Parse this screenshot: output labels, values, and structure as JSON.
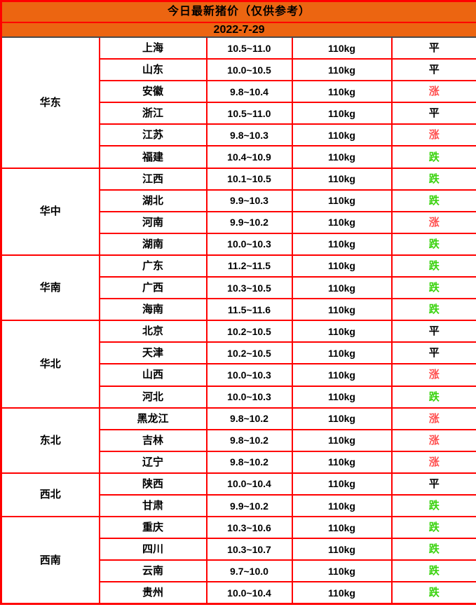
{
  "colors": {
    "header_bg": "#ec6511",
    "grid": "#ff0000",
    "date_underline": "#4a4a4a",
    "trend": {
      "涨": "#ff5050",
      "跌": "#3bd30f",
      "平": "#000000"
    }
  },
  "chart_data": {
    "type": "table",
    "title": "今日最新猪价（仅供参考）",
    "date": "2022-7-29",
    "groups": [
      {
        "region": "华东",
        "rows": [
          {
            "province": "上海",
            "price": "10.5~11.0",
            "weight": "110kg",
            "trend": "平"
          },
          {
            "province": "山东",
            "price": "10.0~10.5",
            "weight": "110kg",
            "trend": "平"
          },
          {
            "province": "安徽",
            "price": "9.8~10.4",
            "weight": "110kg",
            "trend": "涨"
          },
          {
            "province": "浙江",
            "price": "10.5~11.0",
            "weight": "110kg",
            "trend": "平"
          },
          {
            "province": "江苏",
            "price": "9.8~10.3",
            "weight": "110kg",
            "trend": "涨"
          },
          {
            "province": "福建",
            "price": "10.4~10.9",
            "weight": "110kg",
            "trend": "跌"
          }
        ]
      },
      {
        "region": "华中",
        "rows": [
          {
            "province": "江西",
            "price": "10.1~10.5",
            "weight": "110kg",
            "trend": "跌"
          },
          {
            "province": "湖北",
            "price": "9.9~10.3",
            "weight": "110kg",
            "trend": "跌"
          },
          {
            "province": "河南",
            "price": "9.9~10.2",
            "weight": "110kg",
            "trend": "涨"
          },
          {
            "province": "湖南",
            "price": "10.0~10.3",
            "weight": "110kg",
            "trend": "跌"
          }
        ]
      },
      {
        "region": "华南",
        "rows": [
          {
            "province": "广东",
            "price": "11.2~11.5",
            "weight": "110kg",
            "trend": "跌"
          },
          {
            "province": "广西",
            "price": "10.3~10.5",
            "weight": "110kg",
            "trend": "跌"
          },
          {
            "province": "海南",
            "price": "11.5~11.6",
            "weight": "110kg",
            "trend": "跌"
          }
        ]
      },
      {
        "region": "华北",
        "rows": [
          {
            "province": "北京",
            "price": "10.2~10.5",
            "weight": "110kg",
            "trend": "平"
          },
          {
            "province": "天津",
            "price": "10.2~10.5",
            "weight": "110kg",
            "trend": "平"
          },
          {
            "province": "山西",
            "price": "10.0~10.3",
            "weight": "110kg",
            "trend": "涨"
          },
          {
            "province": "河北",
            "price": "10.0~10.3",
            "weight": "110kg",
            "trend": "跌"
          }
        ]
      },
      {
        "region": "东北",
        "rows": [
          {
            "province": "黑龙江",
            "price": "9.8~10.2",
            "weight": "110kg",
            "trend": "涨"
          },
          {
            "province": "吉林",
            "price": "9.8~10.2",
            "weight": "110kg",
            "trend": "涨"
          },
          {
            "province": "辽宁",
            "price": "9.8~10.2",
            "weight": "110kg",
            "trend": "涨"
          }
        ]
      },
      {
        "region": "西北",
        "rows": [
          {
            "province": "陕西",
            "price": "10.0~10.4",
            "weight": "110kg",
            "trend": "平"
          },
          {
            "province": "甘肃",
            "price": "9.9~10.2",
            "weight": "110kg",
            "trend": "跌"
          }
        ]
      },
      {
        "region": "西南",
        "rows": [
          {
            "province": "重庆",
            "price": "10.3~10.6",
            "weight": "110kg",
            "trend": "跌"
          },
          {
            "province": "四川",
            "price": "10.3~10.7",
            "weight": "110kg",
            "trend": "跌"
          },
          {
            "province": "云南",
            "price": "9.7~10.0",
            "weight": "110kg",
            "trend": "跌"
          },
          {
            "province": "贵州",
            "price": "10.0~10.4",
            "weight": "110kg",
            "trend": "跌"
          }
        ]
      }
    ]
  }
}
